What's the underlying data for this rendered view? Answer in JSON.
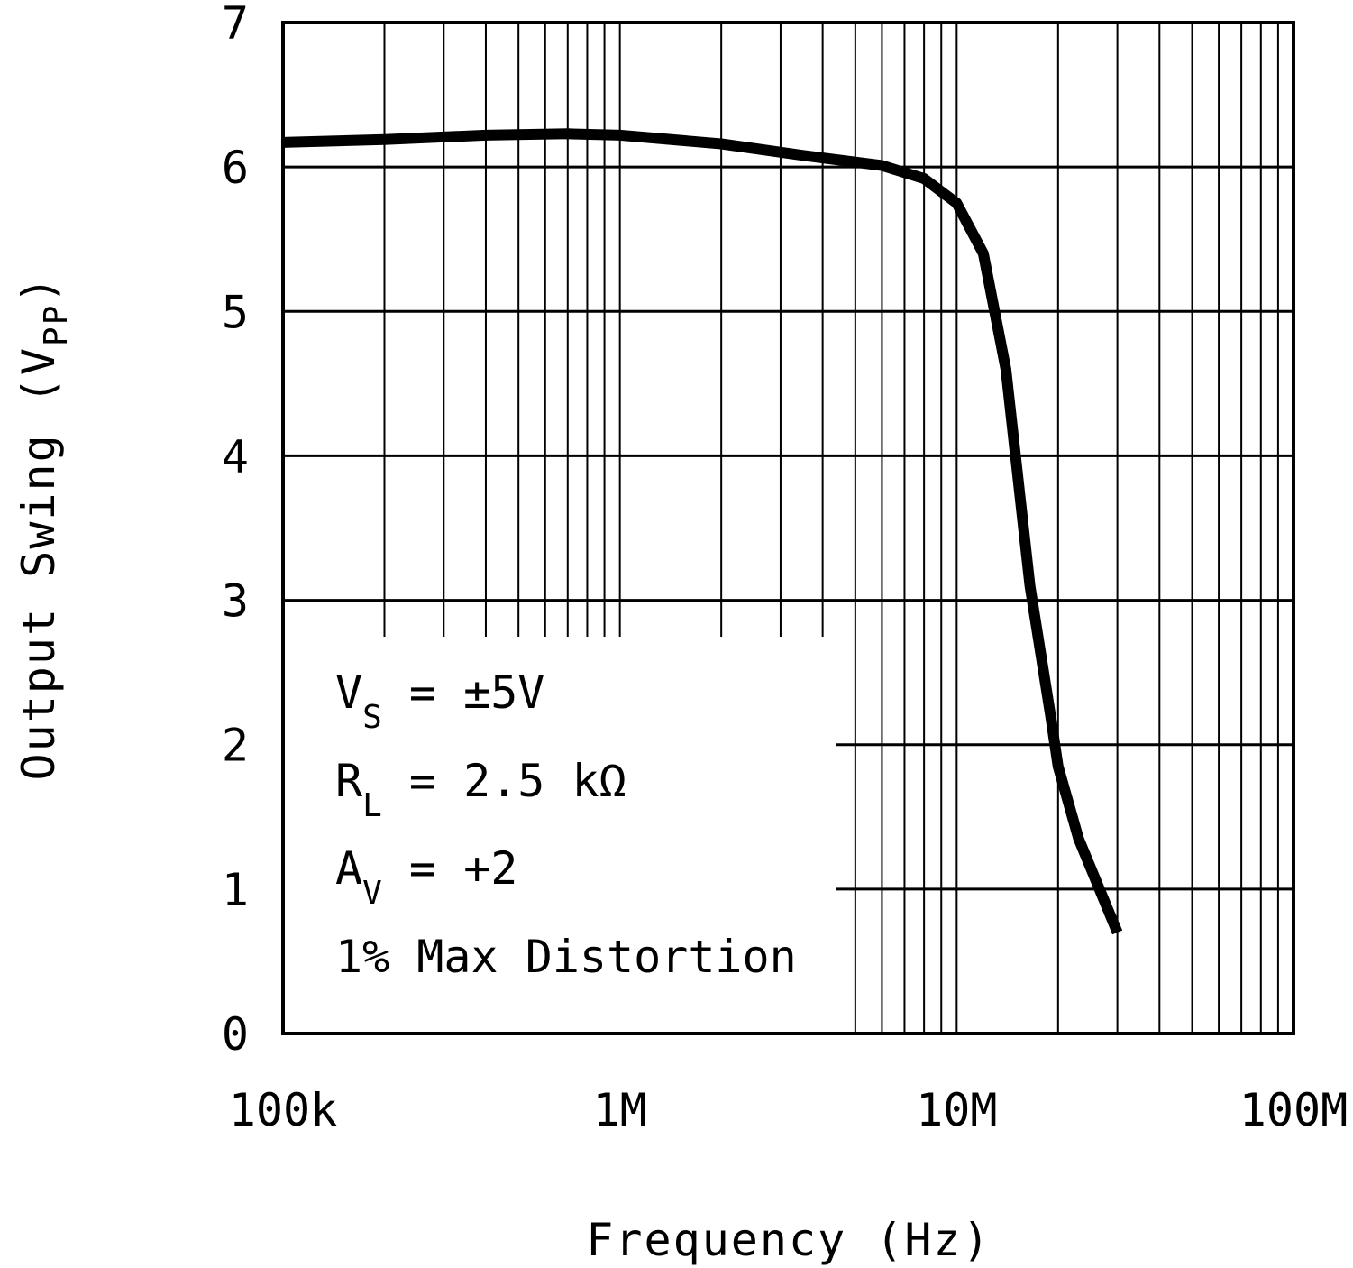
{
  "chart_data": {
    "type": "line",
    "xscale": "log",
    "xlim": [
      100000,
      100000000
    ],
    "ylim": [
      0,
      7
    ],
    "grid": true,
    "x_ticks": [
      {
        "value": 100000,
        "label": "100k"
      },
      {
        "value": 1000000,
        "label": "1M"
      },
      {
        "value": 10000000,
        "label": "10M"
      },
      {
        "value": 100000000,
        "label": "100M"
      }
    ],
    "y_ticks": [
      {
        "value": 0,
        "label": "0"
      },
      {
        "value": 1,
        "label": "1"
      },
      {
        "value": 2,
        "label": "2"
      },
      {
        "value": 3,
        "label": "3"
      },
      {
        "value": 4,
        "label": "4"
      },
      {
        "value": 5,
        "label": "5"
      },
      {
        "value": 6,
        "label": "6"
      },
      {
        "value": 7,
        "label": "7"
      }
    ],
    "xlabel": "Frequency (Hz)",
    "ylabel": {
      "main": "Output Swing (V",
      "sub": "PP",
      "end": ")"
    },
    "annotations": [
      {
        "main": "V",
        "sub": "S",
        "rest": " = ±5V"
      },
      {
        "main": "R",
        "sub": "L",
        "rest": " = 2.5 kΩ"
      },
      {
        "main": "A",
        "sub": "V",
        "rest": " = +2"
      },
      {
        "main": "1% Max Distortion",
        "sub": "",
        "rest": ""
      }
    ],
    "series": [
      {
        "name": "Output Swing",
        "x": [
          100000,
          200000,
          400000,
          700000,
          1000000,
          2000000,
          3500000,
          6000000,
          8000000,
          10000000,
          12000000,
          14000000,
          16500000,
          19000000,
          20000000,
          23000000,
          30000000
        ],
        "y": [
          6.17,
          6.19,
          6.22,
          6.23,
          6.22,
          6.16,
          6.08,
          6.01,
          5.92,
          5.75,
          5.4,
          4.6,
          3.1,
          2.2,
          1.85,
          1.35,
          0.7
        ]
      }
    ]
  }
}
